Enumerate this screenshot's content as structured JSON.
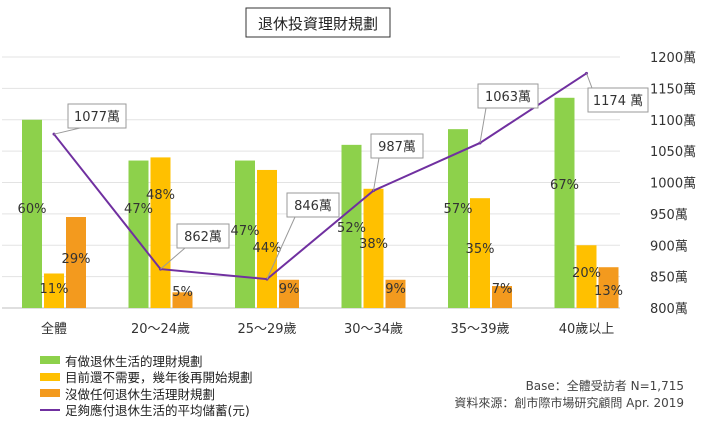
{
  "chart_data": {
    "type": "bar",
    "title": "退休投資理財規劃",
    "categories": [
      "全體",
      "20～24歲",
      "25～29歲",
      "30～34歲",
      "35～39歲",
      "40歲以上"
    ],
    "series": [
      {
        "name": "有做退休生活的理財規劃",
        "type": "bar",
        "axis": "left",
        "color": "#8DD14B",
        "values": [
          60,
          47,
          47,
          52,
          57,
          67
        ],
        "labels": [
          "60%",
          "47%",
          "47%",
          "52%",
          "57%",
          "67%"
        ]
      },
      {
        "name": "目前還不需要，幾年後再開始規劃",
        "type": "bar",
        "axis": "left",
        "color": "#FFC000",
        "values": [
          11,
          48,
          44,
          38,
          35,
          20
        ],
        "labels": [
          "11%",
          "48%",
          "44%",
          "38%",
          "35%",
          "20%"
        ]
      },
      {
        "name": "沒做任何退休生活理財規劃",
        "type": "bar",
        "axis": "left",
        "color": "#F39A1E",
        "values": [
          29,
          5,
          9,
          9,
          7,
          13
        ],
        "labels": [
          "29%",
          "5%",
          "9%",
          "9%",
          "7%",
          "13%"
        ]
      },
      {
        "name": "足夠應付退休生活的平均儲蓄(元)",
        "type": "line",
        "axis": "right",
        "color": "#7030A0",
        "values": [
          1077,
          862,
          846,
          987,
          1063,
          1174
        ],
        "labels": [
          "1077萬",
          "862萬",
          "846萬",
          "987萬",
          "1063萬",
          "1174 萬"
        ]
      }
    ],
    "y_left_range": [
      0,
      80
    ],
    "y_right_range": [
      800,
      1200
    ],
    "y_right_ticks": [
      "800萬",
      "850萬",
      "900萬",
      "950萬",
      "1000萬",
      "1050萬",
      "1100萬",
      "1150萬",
      "1200萬"
    ],
    "grid": true,
    "legend_position": "bottom-left"
  },
  "footer": {
    "base": "Base：全體受訪者 N=1,715",
    "source": "資料來源：創市際市場研究顧問 Apr. 2019"
  }
}
